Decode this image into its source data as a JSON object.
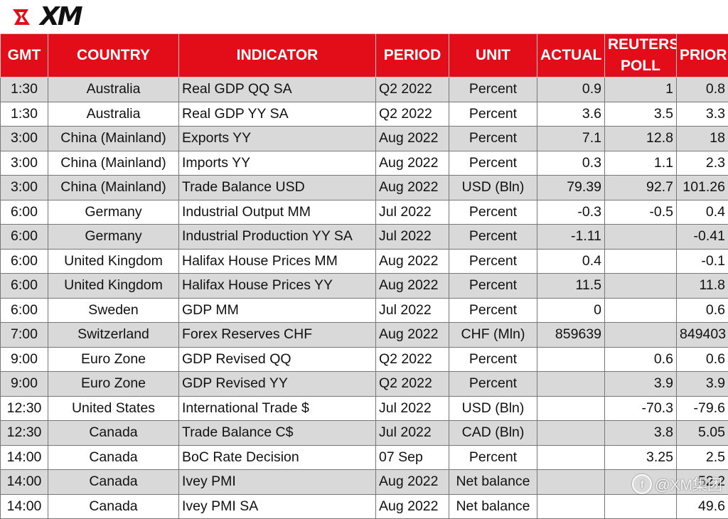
{
  "brand": {
    "logo_text": "XM",
    "accent_color": "#e30d1a"
  },
  "table": {
    "headers": [
      "GMT",
      "COUNTRY",
      "INDICATOR",
      "PERIOD",
      "UNIT",
      "ACTUAL",
      "REUTERS POLL",
      "PRIOR"
    ],
    "rows": [
      [
        "1:30",
        "Australia",
        "Real GDP QQ SA",
        "Q2 2022",
        "Percent",
        "0.9",
        "1",
        "0.8"
      ],
      [
        "1:30",
        "Australia",
        "Real GDP YY SA",
        "Q2 2022",
        "Percent",
        "3.6",
        "3.5",
        "3.3"
      ],
      [
        "3:00",
        "China (Mainland)",
        "Exports YY",
        "Aug 2022",
        "Percent",
        "7.1",
        "12.8",
        "18"
      ],
      [
        "3:00",
        "China (Mainland)",
        "Imports YY",
        "Aug 2022",
        "Percent",
        "0.3",
        "1.1",
        "2.3"
      ],
      [
        "3:00",
        "China (Mainland)",
        "Trade Balance USD",
        "Aug 2022",
        "USD (Bln)",
        "79.39",
        "92.7",
        "101.26"
      ],
      [
        "6:00",
        "Germany",
        "Industrial Output MM",
        "Jul 2022",
        "Percent",
        "-0.3",
        "-0.5",
        "0.4"
      ],
      [
        "6:00",
        "Germany",
        "Industrial Production YY SA",
        "Jul 2022",
        "Percent",
        "-1.11",
        "",
        "-0.41"
      ],
      [
        "6:00",
        "United Kingdom",
        "Halifax House Prices MM",
        "Aug 2022",
        "Percent",
        "0.4",
        "",
        "-0.1"
      ],
      [
        "6:00",
        "United Kingdom",
        "Halifax House Prices YY",
        "Aug 2022",
        "Percent",
        "11.5",
        "",
        "11.8"
      ],
      [
        "6:00",
        "Sweden",
        "GDP MM",
        "Jul 2022",
        "Percent",
        "0",
        "",
        "0.6"
      ],
      [
        "7:00",
        "Switzerland",
        "Forex Reserves CHF",
        "Aug 2022",
        "CHF (Mln)",
        "859639",
        "",
        "849403"
      ],
      [
        "9:00",
        "Euro Zone",
        "GDP Revised QQ",
        "Q2 2022",
        "Percent",
        "",
        "0.6",
        "0.6"
      ],
      [
        "9:00",
        "Euro Zone",
        "GDP Revised YY",
        "Q2 2022",
        "Percent",
        "",
        "3.9",
        "3.9"
      ],
      [
        "12:30",
        "United States",
        "International Trade $",
        "Jul 2022",
        "USD (Bln)",
        "",
        "-70.3",
        "-79.6"
      ],
      [
        "12:30",
        "Canada",
        "Trade Balance C$",
        "Jul 2022",
        "CAD (Bln)",
        "",
        "3.8",
        "5.05"
      ],
      [
        "14:00",
        "Canada",
        "BoC Rate Decision",
        "07 Sep",
        "Percent",
        "",
        "3.25",
        "2.5"
      ],
      [
        "14:00",
        "Canada",
        "Ivey PMI",
        "Aug 2022",
        "Net balance",
        "",
        "",
        "52.2"
      ],
      [
        "14:00",
        "Canada",
        "Ivey PMI SA",
        "Aug 2022",
        "Net balance",
        "",
        "",
        "49.6"
      ]
    ]
  },
  "watermark": {
    "text": "@XM集团"
  }
}
